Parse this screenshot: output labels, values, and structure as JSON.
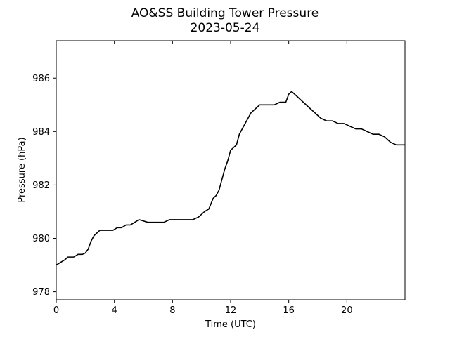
{
  "chart_data": {
    "type": "line",
    "title": "AO&SS Building Tower Pressure",
    "subtitle": "2023-05-24",
    "xlabel": "Time (UTC)",
    "ylabel": "Pressure (hPa)",
    "xlim": [
      0,
      24
    ],
    "ylim": [
      977.7,
      987.4
    ],
    "xticks": [
      0,
      4,
      8,
      12,
      16,
      20
    ],
    "yticks": [
      978,
      980,
      982,
      984,
      986
    ],
    "grid": false,
    "line_color": "#000000",
    "series": [
      {
        "x": [
          0,
          0.3,
          0.6,
          0.8,
          1.0,
          1.2,
          1.5,
          1.8,
          2.0,
          2.2,
          2.4,
          2.6,
          2.8,
          3.0,
          3.3,
          3.6,
          3.9,
          4.2,
          4.5,
          4.8,
          5.1,
          5.4,
          5.7,
          6.0,
          6.3,
          6.6,
          7.0,
          7.4,
          7.8,
          8.2,
          8.6,
          9.0,
          9.4,
          9.8,
          10.2,
          10.5,
          10.8,
          11.0,
          11.2,
          11.4,
          11.6,
          11.8,
          12.0,
          12.2,
          12.4,
          12.6,
          12.8,
          13.0,
          13.2,
          13.4,
          13.6,
          13.8,
          14.0,
          14.3,
          14.6,
          15.0,
          15.4,
          15.8,
          16.0,
          16.2,
          16.4,
          16.6,
          16.8,
          17.0,
          17.4,
          17.8,
          18.2,
          18.6,
          19.0,
          19.4,
          19.8,
          20.2,
          20.6,
          21.0,
          21.4,
          21.8,
          22.2,
          22.6,
          23.0,
          23.4,
          24.0
        ],
        "y": [
          979.0,
          979.1,
          979.2,
          979.3,
          979.3,
          979.3,
          979.4,
          979.4,
          979.45,
          979.6,
          979.9,
          980.1,
          980.2,
          980.3,
          980.3,
          980.3,
          980.3,
          980.4,
          980.4,
          980.5,
          980.5,
          980.6,
          980.7,
          980.65,
          980.6,
          980.6,
          980.6,
          980.6,
          980.7,
          980.7,
          980.7,
          980.7,
          980.7,
          980.8,
          981.0,
          981.1,
          981.5,
          981.6,
          981.8,
          982.2,
          982.6,
          982.9,
          983.3,
          983.4,
          983.5,
          983.9,
          984.1,
          984.3,
          984.5,
          984.7,
          984.8,
          984.9,
          985.0,
          985.0,
          985.0,
          985.0,
          985.1,
          985.1,
          985.4,
          985.5,
          985.4,
          985.3,
          985.2,
          985.1,
          984.9,
          984.7,
          984.5,
          984.4,
          984.4,
          984.3,
          984.3,
          984.2,
          984.1,
          984.1,
          984.0,
          983.9,
          983.9,
          983.8,
          983.6,
          983.5,
          983.5
        ]
      }
    ]
  }
}
